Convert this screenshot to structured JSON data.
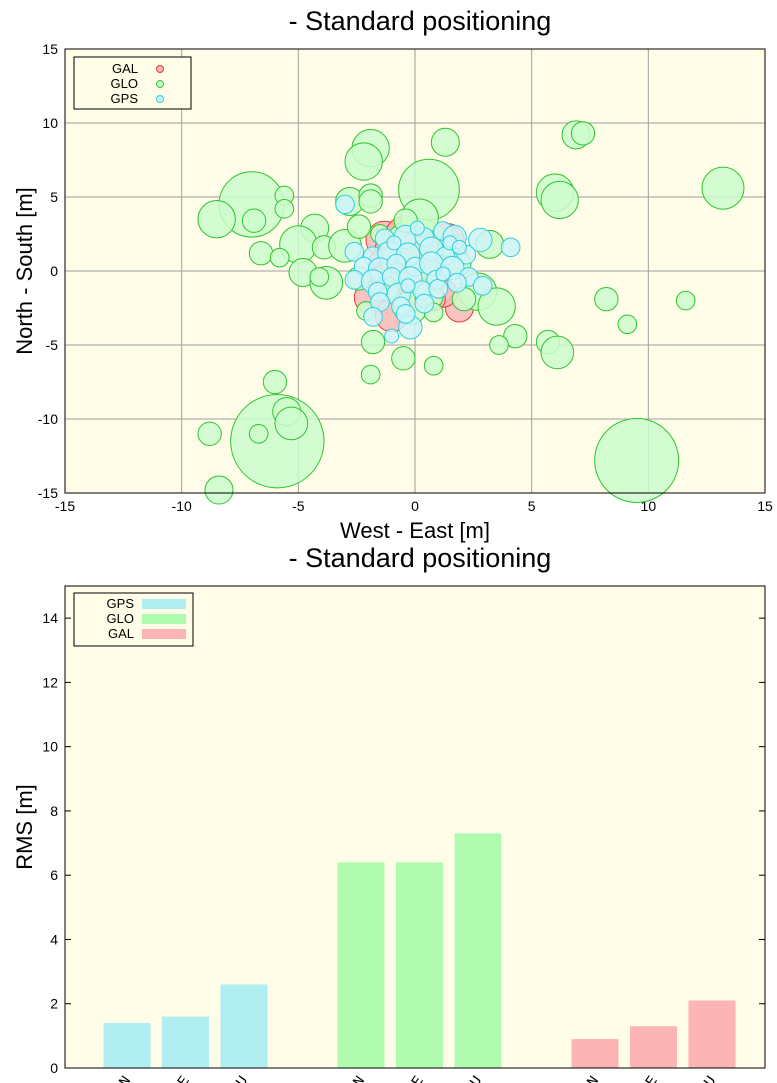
{
  "chart_data": [
    {
      "type": "scatter",
      "title": "- Standard positioning",
      "xlabel": "West - East [m]",
      "ylabel": "North - South [m]",
      "xlim": [
        -15,
        15
      ],
      "ylim": [
        -15,
        15
      ],
      "xticks": [
        -15,
        -10,
        -5,
        0,
        5,
        10,
        15
      ],
      "yticks": [
        -15,
        -10,
        -5,
        0,
        5,
        10,
        15
      ],
      "grid": true,
      "legend_position": "top-left",
      "series": [
        {
          "name": "GAL",
          "edge": "#e83a3a",
          "fill": "#f7b9b9",
          "points": [
            [
              -1.3,
              2.1,
              0.8
            ],
            [
              -1.0,
              1.5,
              0.7
            ],
            [
              -0.4,
              2.3,
              0.9
            ],
            [
              0.2,
              1.8,
              0.6
            ],
            [
              1.4,
              2.1,
              0.7
            ],
            [
              1.6,
              1.2,
              0.6
            ],
            [
              -1.9,
              -1.8,
              0.7
            ],
            [
              1.9,
              -2.5,
              0.6
            ],
            [
              -1.0,
              -3.0,
              0.7
            ],
            [
              -0.5,
              -1.4,
              0.7
            ],
            [
              -1.4,
              0.5,
              0.6
            ],
            [
              -0.6,
              -0.4,
              0.7
            ],
            [
              0.4,
              -0.6,
              0.8
            ],
            [
              1.2,
              -1.5,
              0.6
            ],
            [
              0.5,
              0.4,
              0.6
            ],
            [
              -0.4,
              1.0,
              0.5
            ],
            [
              0.8,
              -1.9,
              0.5
            ],
            [
              -1.4,
              -0.4,
              0.5
            ],
            [
              1.6,
              0.3,
              0.5
            ],
            [
              -0.2,
              -2.0,
              0.5
            ]
          ]
        },
        {
          "name": "GLO",
          "edge": "#2ec52e",
          "fill": "#ccfccc",
          "points": [
            [
              -7.0,
              4.5,
              1.4
            ],
            [
              -5.9,
              -11.5,
              2.0
            ],
            [
              9.5,
              -12.8,
              1.8
            ],
            [
              0.6,
              5.5,
              1.3
            ],
            [
              0.1,
              1.0,
              1.6
            ],
            [
              13.2,
              5.6,
              0.9
            ],
            [
              6.9,
              9.2,
              0.6
            ],
            [
              7.2,
              9.3,
              0.5
            ],
            [
              1.3,
              8.7,
              0.6
            ],
            [
              -1.9,
              8.3,
              0.8
            ],
            [
              -2.2,
              7.4,
              0.8
            ],
            [
              6.0,
              5.3,
              0.8
            ],
            [
              6.2,
              4.8,
              0.8
            ],
            [
              -8.5,
              3.5,
              0.8
            ],
            [
              -6.9,
              3.4,
              0.5
            ],
            [
              -5.6,
              5.1,
              0.4
            ],
            [
              -5.6,
              4.2,
              0.4
            ],
            [
              -4.3,
              2.9,
              0.6
            ],
            [
              -2.8,
              4.7,
              0.6
            ],
            [
              -1.9,
              5.1,
              0.5
            ],
            [
              -1.9,
              4.7,
              0.5
            ],
            [
              0.2,
              3.6,
              0.8
            ],
            [
              -5.0,
              1.8,
              0.8
            ],
            [
              -3.9,
              1.6,
              0.5
            ],
            [
              -3.0,
              1.7,
              0.7
            ],
            [
              -6.6,
              1.2,
              0.5
            ],
            [
              -5.8,
              0.9,
              0.4
            ],
            [
              -4.8,
              -0.1,
              0.6
            ],
            [
              -3.8,
              -0.8,
              0.7
            ],
            [
              -4.1,
              -0.4,
              0.4
            ],
            [
              -2.4,
              -0.5,
              0.5
            ],
            [
              -2.1,
              -2.7,
              0.4
            ],
            [
              -1.8,
              -4.8,
              0.5
            ],
            [
              -0.5,
              -5.9,
              0.5
            ],
            [
              0.8,
              -6.4,
              0.4
            ],
            [
              -1.9,
              -7.0,
              0.4
            ],
            [
              -6.0,
              -7.5,
              0.5
            ],
            [
              -5.5,
              -9.5,
              0.6
            ],
            [
              -5.3,
              -10.3,
              0.7
            ],
            [
              -6.7,
              -11.0,
              0.4
            ],
            [
              -8.8,
              -11.0,
              0.5
            ],
            [
              -8.4,
              -14.8,
              0.6
            ],
            [
              2.7,
              -1.4,
              0.8
            ],
            [
              3.5,
              -2.4,
              0.8
            ],
            [
              4.3,
              -4.4,
              0.5
            ],
            [
              3.6,
              -5.0,
              0.4
            ],
            [
              5.7,
              -4.8,
              0.5
            ],
            [
              6.1,
              -5.5,
              0.7
            ],
            [
              8.2,
              -1.9,
              0.5
            ],
            [
              9.1,
              -3.6,
              0.4
            ],
            [
              11.6,
              -2.0,
              0.4
            ],
            [
              3.2,
              1.8,
              0.6
            ],
            [
              2.1,
              -1.9,
              0.5
            ],
            [
              1.5,
              1.7,
              0.5
            ],
            [
              -0.2,
              -2.5,
              0.7
            ],
            [
              0.6,
              -1.7,
              0.6
            ],
            [
              -0.4,
              3.4,
              0.5
            ],
            [
              1.9,
              0.5,
              0.5
            ],
            [
              -1.2,
              -1.2,
              0.5
            ],
            [
              -2.4,
              3.0,
              0.5
            ],
            [
              0.8,
              -2.8,
              0.4
            ],
            [
              -1.5,
              2.5,
              0.4
            ]
          ]
        },
        {
          "name": "GPS",
          "edge": "#2ed0df",
          "fill": "#cdf3f8",
          "points": [
            [
              -3.0,
              4.5,
              0.4
            ],
            [
              -1.3,
              2.2,
              0.4
            ],
            [
              -0.4,
              2.3,
              0.5
            ],
            [
              0.4,
              2.3,
              0.4
            ],
            [
              1.2,
              2.7,
              0.4
            ],
            [
              1.7,
              2.3,
              0.5
            ],
            [
              2.8,
              2.1,
              0.5
            ],
            [
              4.1,
              1.6,
              0.4
            ],
            [
              -2.6,
              1.3,
              0.4
            ],
            [
              -1.8,
              1.0,
              0.4
            ],
            [
              -1.1,
              1.2,
              0.5
            ],
            [
              -0.3,
              1.1,
              0.5
            ],
            [
              0.7,
              1.5,
              0.5
            ],
            [
              1.3,
              1.0,
              0.4
            ],
            [
              2.2,
              1.1,
              0.4
            ],
            [
              -2.2,
              0.3,
              0.4
            ],
            [
              -1.5,
              0.1,
              0.5
            ],
            [
              -0.8,
              0.5,
              0.4
            ],
            [
              0.0,
              0.3,
              0.4
            ],
            [
              0.7,
              0.5,
              0.5
            ],
            [
              1.6,
              0.2,
              0.5
            ],
            [
              2.3,
              -0.4,
              0.4
            ],
            [
              -2.6,
              -0.6,
              0.4
            ],
            [
              -1.8,
              -0.7,
              0.5
            ],
            [
              -1.0,
              -0.4,
              0.4
            ],
            [
              -0.2,
              -0.5,
              0.5
            ],
            [
              0.9,
              -0.6,
              0.4
            ],
            [
              1.8,
              -0.8,
              0.4
            ],
            [
              2.9,
              -1.0,
              0.4
            ],
            [
              -1.6,
              -1.4,
              0.4
            ],
            [
              -0.7,
              -1.6,
              0.5
            ],
            [
              0.3,
              -1.3,
              0.4
            ],
            [
              1.0,
              -1.2,
              0.4
            ],
            [
              -1.5,
              -2.1,
              0.4
            ],
            [
              -0.6,
              -2.4,
              0.4
            ],
            [
              0.4,
              -2.2,
              0.4
            ],
            [
              -1.8,
              -3.1,
              0.4
            ],
            [
              -0.2,
              -3.8,
              0.5
            ],
            [
              -1.0,
              -4.4,
              0.3
            ],
            [
              -0.4,
              -2.9,
              0.4
            ],
            [
              0.1,
              2.9,
              0.3
            ],
            [
              1.5,
              1.9,
              0.3
            ],
            [
              -0.9,
              1.9,
              0.3
            ],
            [
              1.9,
              1.6,
              0.3
            ],
            [
              -0.3,
              -1.0,
              0.3
            ],
            [
              1.2,
              -0.2,
              0.3
            ]
          ]
        }
      ]
    },
    {
      "type": "bar",
      "title": "- Standard positioning",
      "xlabel": "",
      "ylabel": "RMS [m]",
      "ylim": [
        0,
        15
      ],
      "yticks": [
        0,
        2,
        4,
        6,
        8,
        10,
        12,
        14
      ],
      "legend_position": "top-left",
      "legend": [
        {
          "name": "GPS",
          "color": "#b0eef2"
        },
        {
          "name": "GLO",
          "color": "#b0fbb0"
        },
        {
          "name": "GAL",
          "color": "#fdb4b4"
        }
      ],
      "categories": [
        "GPS: N",
        "GPS: E",
        "GPS: U",
        "GLO: N",
        "GLO: E",
        "GLO: U",
        "GAL: N",
        "GAL: E",
        "GAL: U"
      ],
      "values": [
        1.4,
        1.6,
        2.6,
        6.4,
        6.4,
        7.3,
        0.9,
        1.3,
        2.1
      ],
      "bar_colors": [
        "#b0eef2",
        "#b0eef2",
        "#b0eef2",
        "#b0fbb0",
        "#b0fbb0",
        "#b0fbb0",
        "#fdb4b4",
        "#fdb4b4",
        "#fdb4b4"
      ]
    }
  ],
  "theme": {
    "plot_background": "#fffde8",
    "grid_color": "#a0a0a0"
  }
}
